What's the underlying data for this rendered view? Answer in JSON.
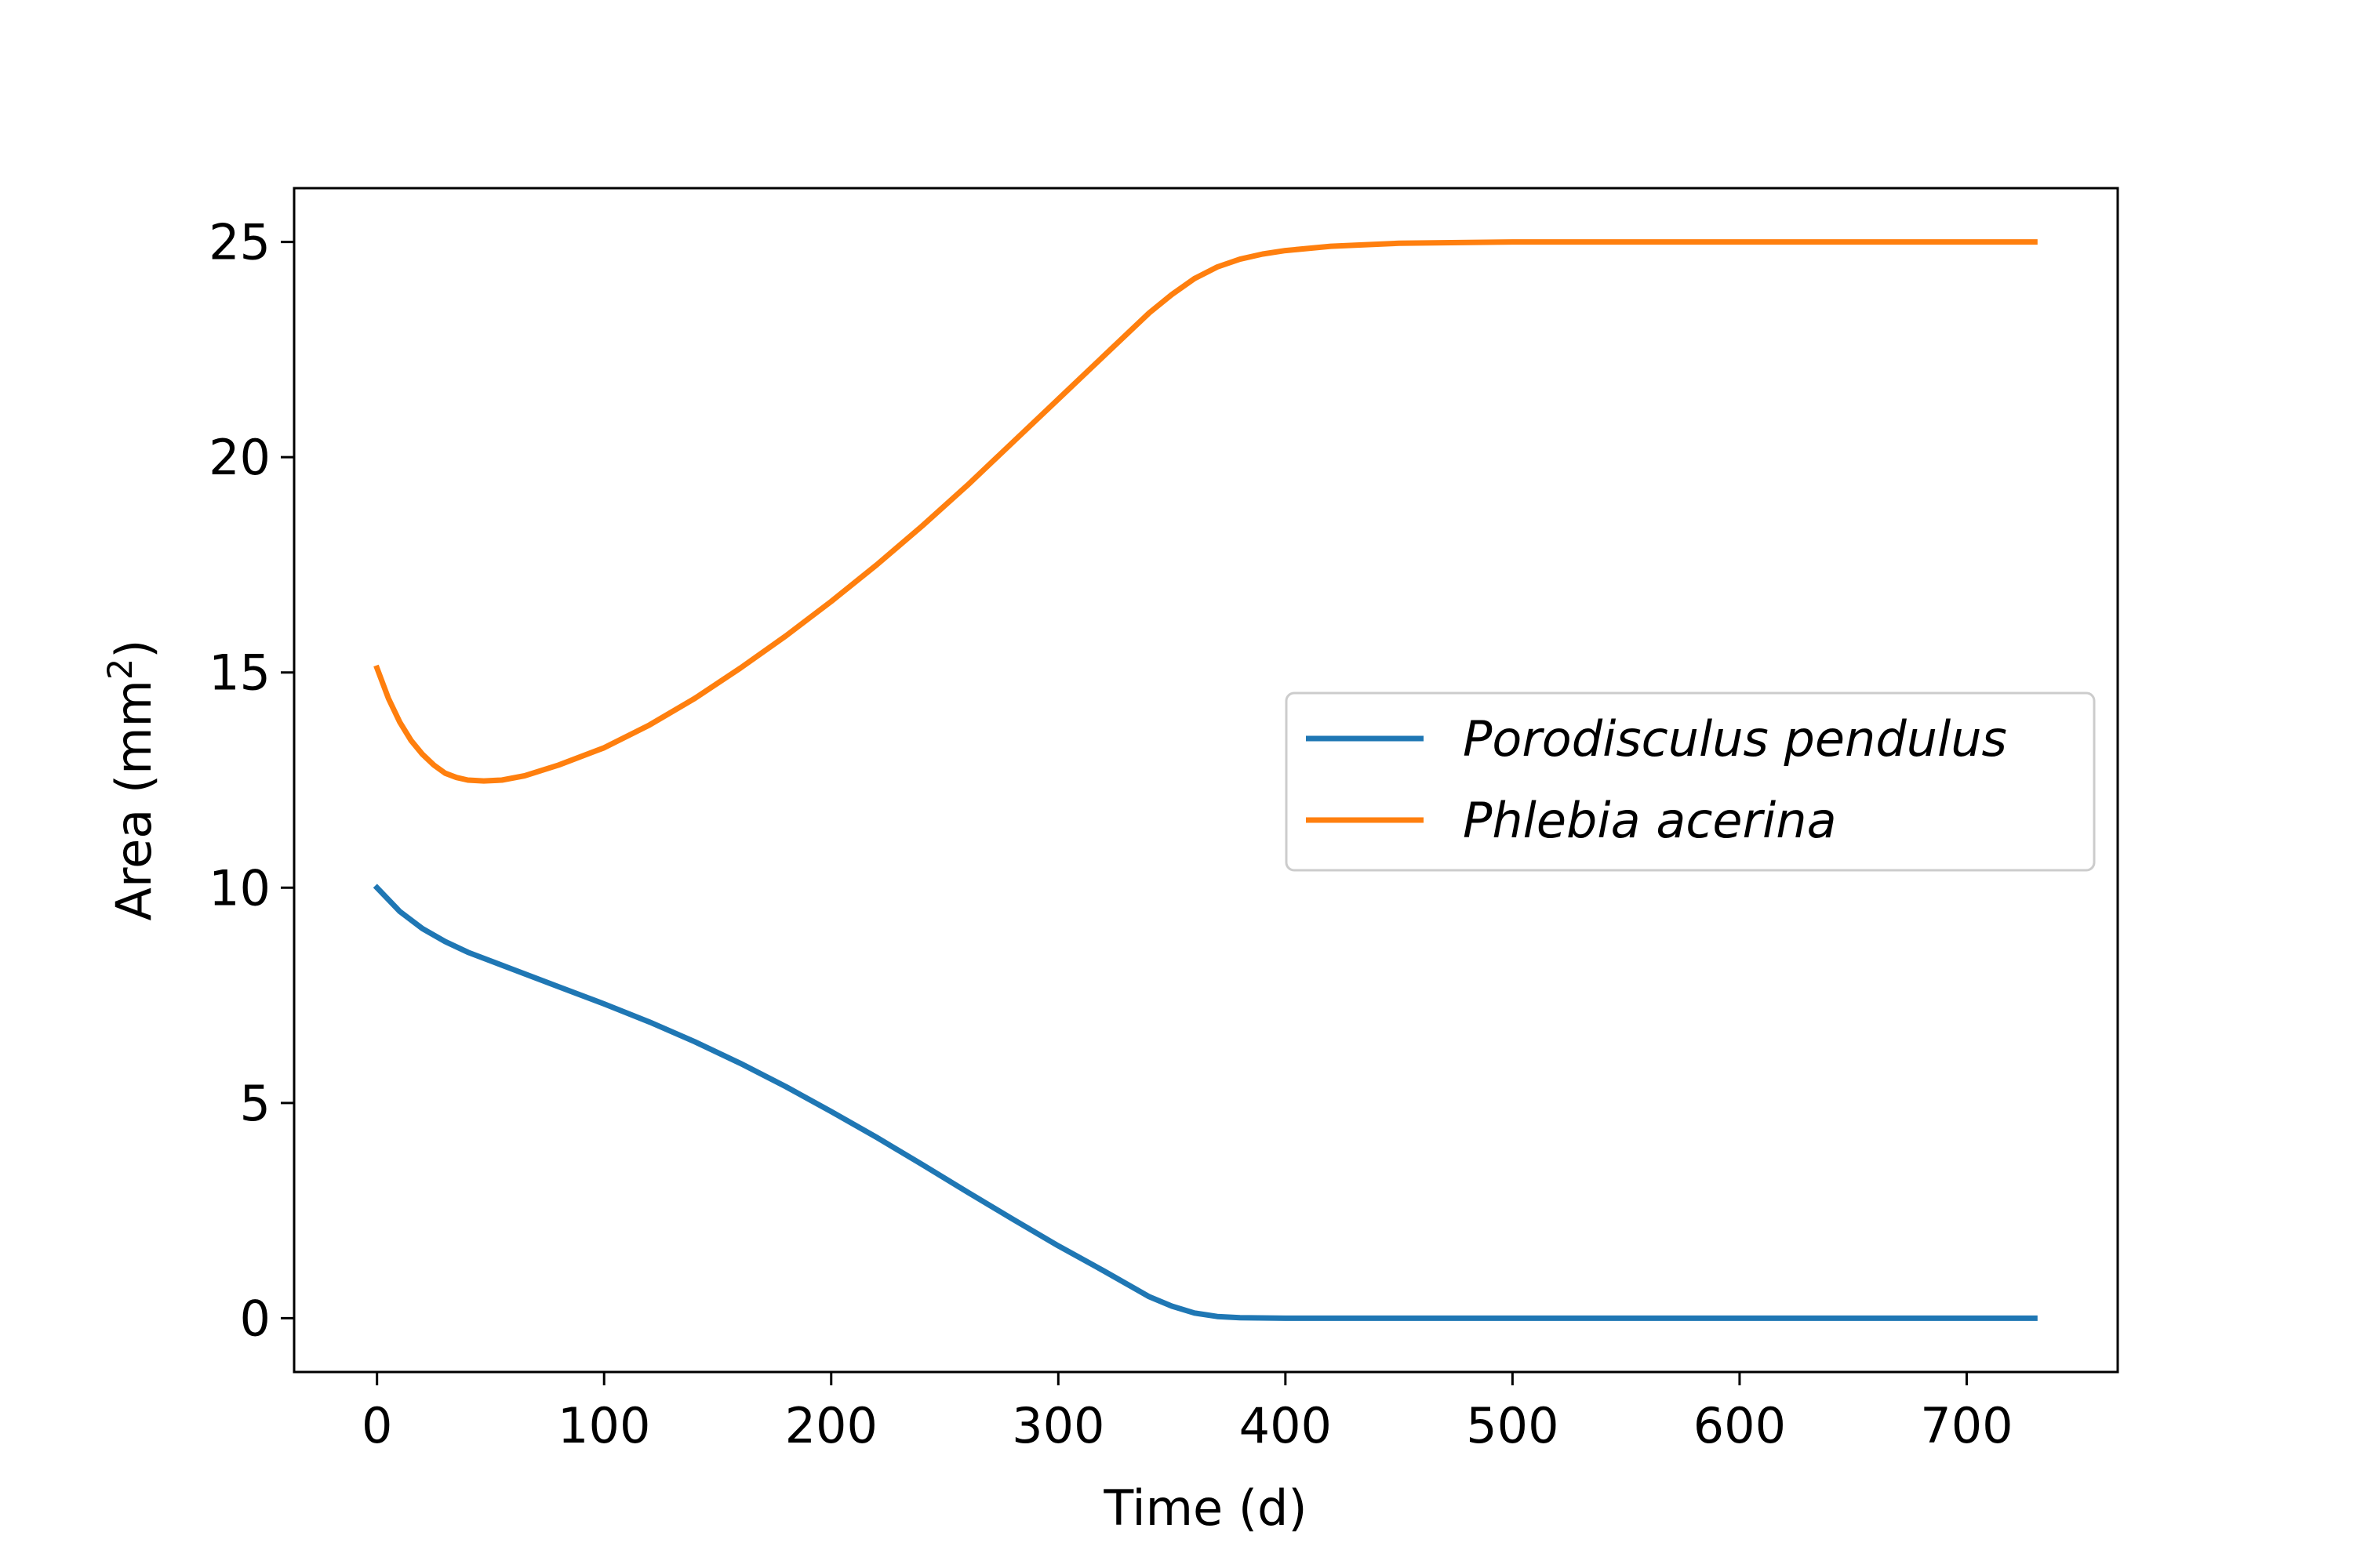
{
  "chart_data": {
    "type": "line",
    "xlabel": "Time (d)",
    "ylabel_text": "Area (mm",
    "ylabel_sup": "2",
    "ylabel_close": ")",
    "xlim": [
      -36.5,
      766.5
    ],
    "ylim": [
      -1.25,
      26.25
    ],
    "xticks": [
      0,
      100,
      200,
      300,
      400,
      500,
      600,
      700
    ],
    "yticks": [
      0,
      5,
      10,
      15,
      20,
      25
    ],
    "grid": false,
    "legend_position": "center-right",
    "series": [
      {
        "name": "Porodisculus pendulus",
        "color": "#1f77b4",
        "x": [
          0,
          10,
          20,
          30,
          40,
          50,
          60,
          80,
          100,
          120,
          140,
          160,
          180,
          200,
          220,
          240,
          260,
          280,
          300,
          320,
          340,
          350,
          360,
          370,
          380,
          400,
          450,
          500,
          600,
          700,
          730
        ],
        "y": [
          10.0,
          9.45,
          9.05,
          8.75,
          8.5,
          8.3,
          8.1,
          7.7,
          7.3,
          6.88,
          6.42,
          5.92,
          5.38,
          4.8,
          4.2,
          3.57,
          2.93,
          2.3,
          1.68,
          1.1,
          0.5,
          0.28,
          0.12,
          0.04,
          0.01,
          0.0,
          0.0,
          0.0,
          0.0,
          0.0,
          0.0
        ]
      },
      {
        "name": "Phlebia acerina",
        "color": "#ff7f0e",
        "x": [
          0,
          5,
          10,
          15,
          20,
          25,
          30,
          35,
          40,
          47,
          55,
          65,
          80,
          100,
          120,
          140,
          160,
          180,
          200,
          220,
          240,
          260,
          280,
          300,
          320,
          340,
          350,
          360,
          370,
          380,
          390,
          400,
          420,
          450,
          500,
          600,
          700,
          730
        ],
        "y": [
          15.1,
          14.4,
          13.85,
          13.42,
          13.1,
          12.85,
          12.66,
          12.56,
          12.5,
          12.48,
          12.5,
          12.6,
          12.85,
          13.25,
          13.78,
          14.4,
          15.1,
          15.85,
          16.65,
          17.5,
          18.4,
          19.35,
          20.35,
          21.35,
          22.35,
          23.35,
          23.78,
          24.15,
          24.42,
          24.6,
          24.72,
          24.8,
          24.9,
          24.97,
          25.0,
          25.0,
          25.0,
          25.0
        ]
      }
    ]
  }
}
